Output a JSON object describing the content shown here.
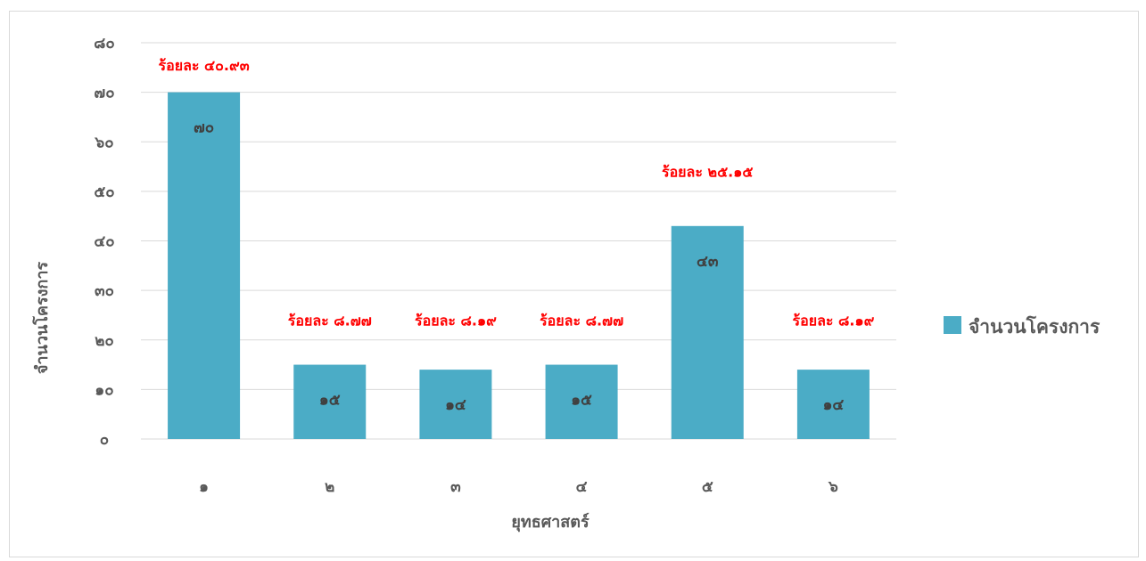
{
  "chart_data": {
    "type": "bar",
    "categories": [
      "๑",
      "๒",
      "๓",
      "๔",
      "๕",
      "๖"
    ],
    "series": [
      {
        "name": "จำนวนโครงการ",
        "values": [
          70,
          15,
          14,
          15,
          43,
          14
        ],
        "value_labels": [
          "๗๐",
          "๑๕",
          "๑๔",
          "๑๕",
          "๔๓",
          "๑๔"
        ],
        "color": "#4bacc6"
      }
    ],
    "percent_labels": [
      "ร้อยละ ๔๐.๙๓",
      "ร้อยละ ๘.๗๗",
      "ร้อยละ ๘.๑๙",
      "ร้อยละ ๘.๗๗",
      "ร้อยละ ๒๕.๑๕",
      "ร้อยละ ๘.๑๙"
    ],
    "percent_label_values": [
      75.5,
      24,
      24,
      24,
      54,
      24
    ],
    "y_ticks": [
      0,
      10,
      20,
      30,
      40,
      50,
      60,
      70,
      80
    ],
    "y_tick_labels": [
      "๐",
      "๑๐",
      "๒๐",
      "๓๐",
      "๔๐",
      "๕๐",
      "๖๐",
      "๗๐",
      "๘๐"
    ],
    "ylim": [
      0,
      80
    ],
    "xlabel": "ยุทธศาสตร์",
    "ylabel": "จำนวนโครงการ",
    "grid": true,
    "legend_position": "right",
    "colors": {
      "bar": "#4bacc6",
      "percent_text": "#ff0000",
      "gridline": "#d9d9d9",
      "text": "#595959"
    }
  }
}
